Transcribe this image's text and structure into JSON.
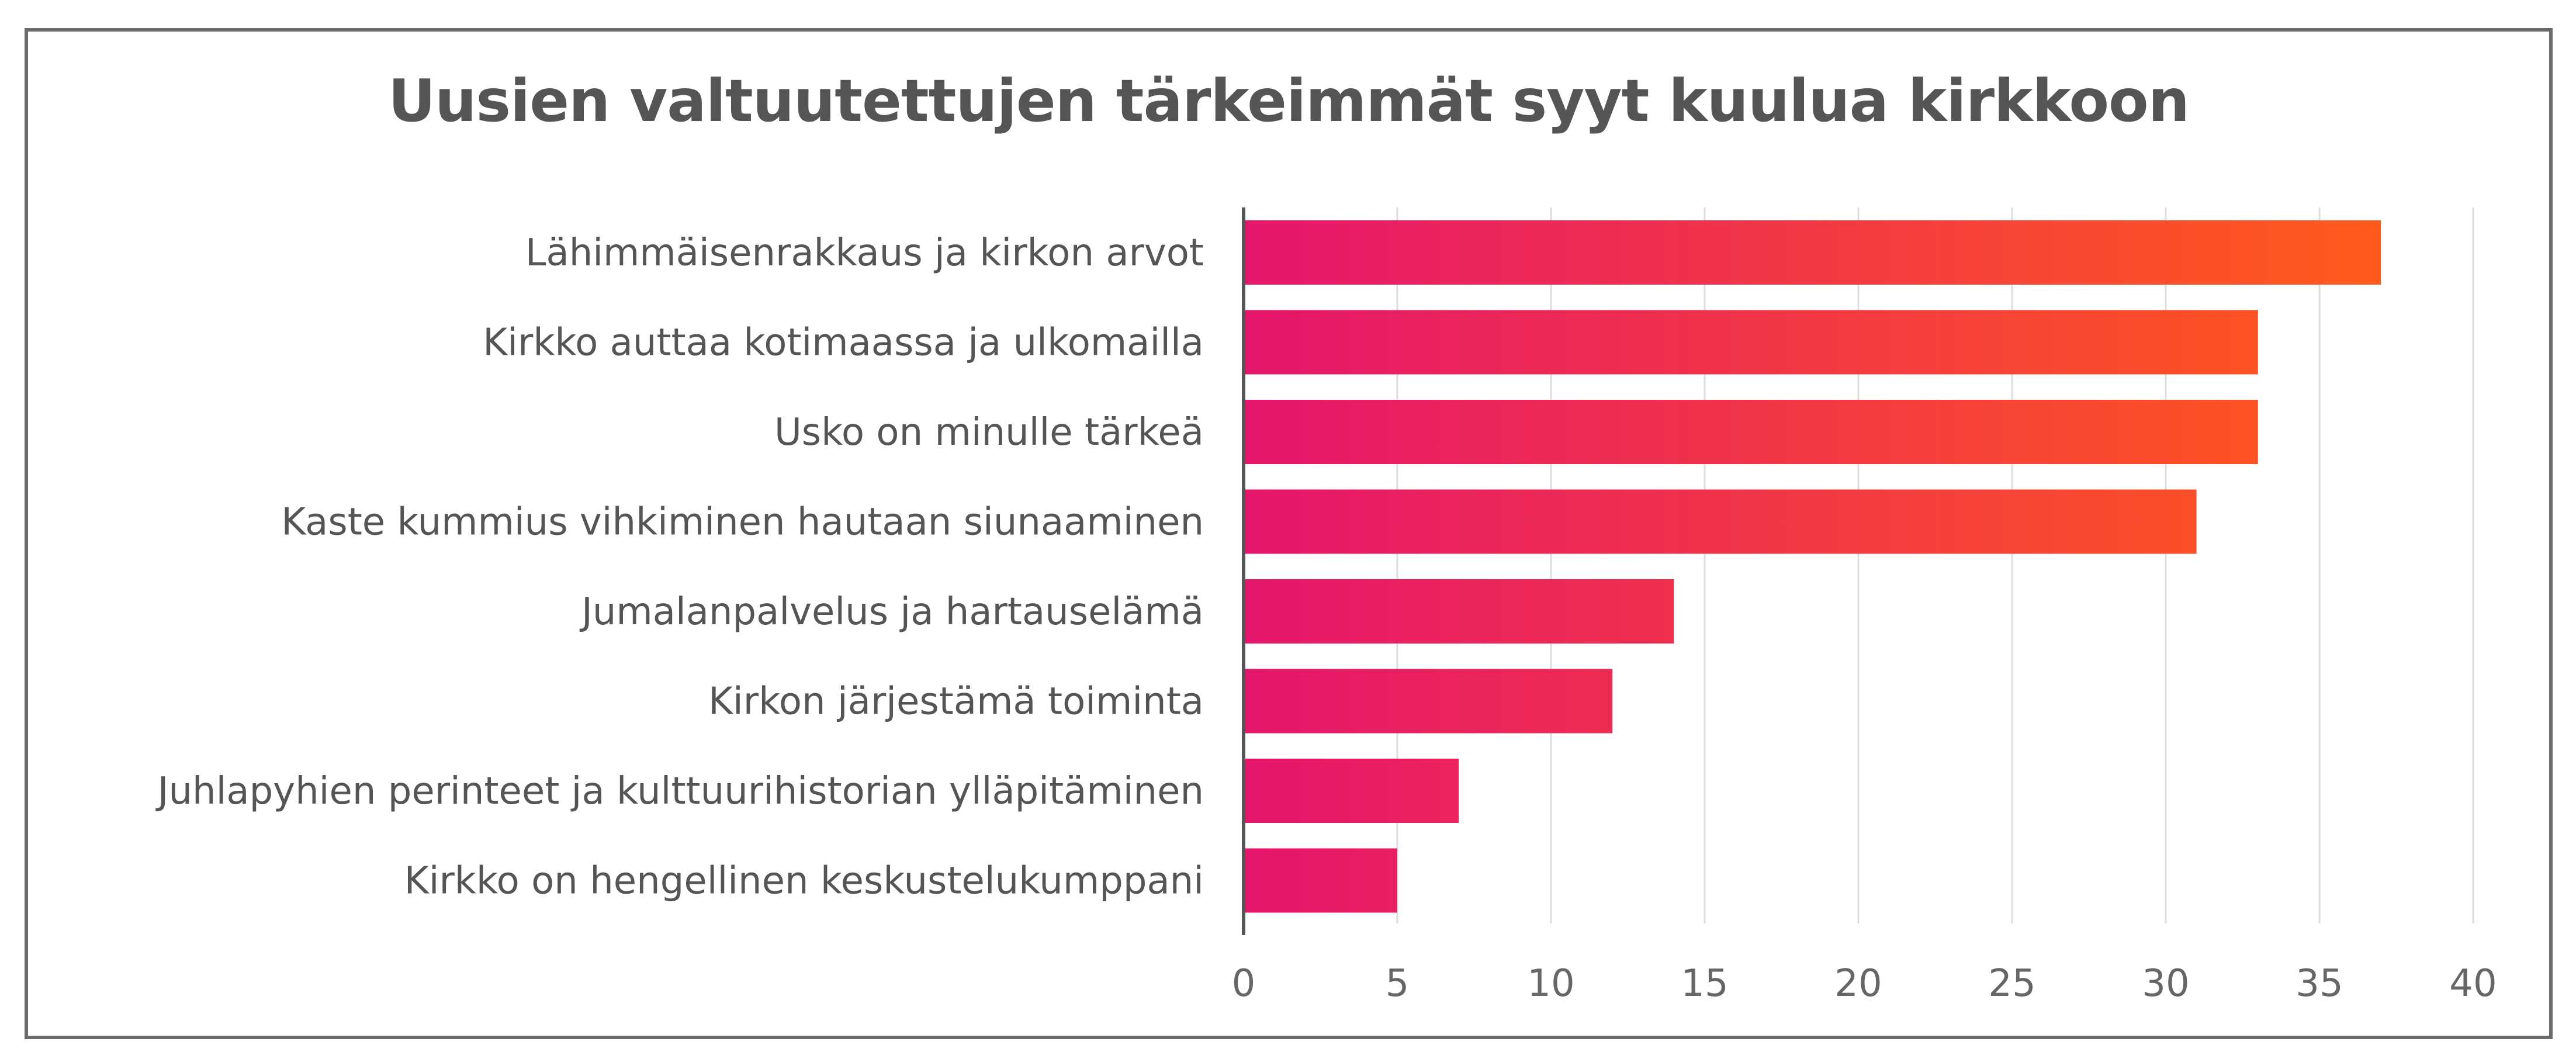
{
  "chart_data": {
    "type": "bar",
    "orientation": "horizontal",
    "title": "Uusien valtuutettujen tärkeimmät syyt kuulua kirkkoon",
    "xlabel": "",
    "ylabel": "",
    "categories": [
      "Lähimmäisenrakkaus ja kirkon arvot",
      "Kirkko auttaa kotimaassa ja ulkomailla",
      "Usko on minulle tärkeä",
      "Kaste kummius vihkiminen hautaan siunaaminen",
      "Jumalanpalvelus ja hartauselämä",
      "Kirkon järjestämä toiminta",
      "Juhlapyhien perinteet ja kulttuurihistorian ylläpitäminen",
      "Kirkko on hengellinen keskustelukumppani"
    ],
    "values": [
      37,
      33,
      33,
      31,
      14,
      12,
      7,
      5
    ],
    "xlim": [
      0,
      40
    ],
    "xticks": [
      "0",
      "5",
      "10",
      "15",
      "20",
      "25",
      "30",
      "35",
      "40"
    ],
    "grid": "vertical",
    "legend": "none",
    "colors": {
      "gradient_start": "#e5166c",
      "gradient_end": "#ff5a1c",
      "axis": "#555555",
      "grid": "#dddddd"
    }
  }
}
